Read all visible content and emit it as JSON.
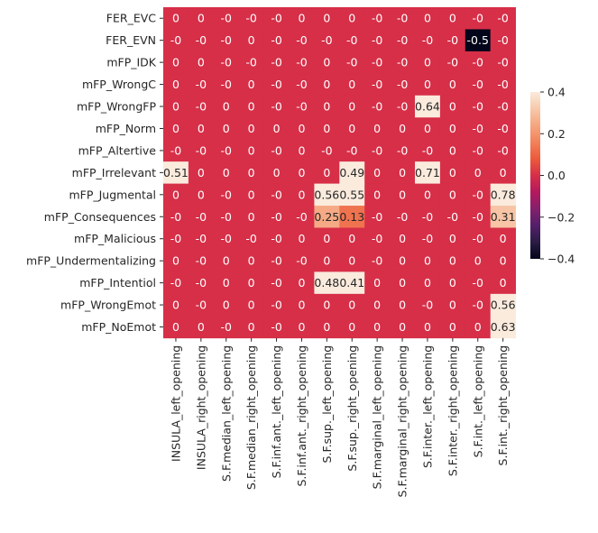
{
  "chart_data": {
    "type": "heatmap",
    "title": "",
    "xlabel": "",
    "ylabel": "",
    "rows": [
      "FER_EVC",
      "FER_EVN",
      "mFP_IDK",
      "mFP_WrongC",
      "mFP_WrongFP",
      "mFP_Norm",
      "mFP_Altertive",
      "mFP_Irrelevant",
      "mFP_Jugmental",
      "mFP_Consequences",
      "mFP_Malicious",
      "mFP_Undermentalizing",
      "mFP_Intentiol",
      "mFP_WrongEmot",
      "mFP_NoEmot"
    ],
    "columns": [
      "INSULA_left_opening",
      "INSULA_right_opening",
      "S.F.median_left_opening",
      "S.F.median_right_opening",
      "S.F.inf.ant._left_opening",
      "S.F.inf.ant._right_opening",
      "S.F.sup._left_opening",
      "S.F.sup._right_opening",
      "S.F.marginal_left_opening",
      "S.F.marginal_right_opening",
      "S.F.inter._left_opening",
      "S.F.inter._right_opening",
      "S.F.int._left_opening",
      "S.F.int._right_opening"
    ],
    "labels": [
      [
        "0",
        "0",
        "-0",
        "-0",
        "-0",
        "0",
        "0",
        "0",
        "-0",
        "-0",
        "0",
        "0",
        "-0",
        "-0"
      ],
      [
        "-0",
        "-0",
        "-0",
        "0",
        "-0",
        "-0",
        "-0",
        "-0",
        "-0",
        "-0",
        "-0",
        "-0",
        "-0.5",
        "-0"
      ],
      [
        "0",
        "0",
        "-0",
        "-0",
        "-0",
        "-0",
        "0",
        "-0",
        "-0",
        "-0",
        "0",
        "-0",
        "-0",
        "-0"
      ],
      [
        "0",
        "-0",
        "-0",
        "0",
        "-0",
        "-0",
        "0",
        "0",
        "-0",
        "-0",
        "0",
        "0",
        "-0",
        "-0"
      ],
      [
        "0",
        "-0",
        "0",
        "0",
        "-0",
        "-0",
        "0",
        "0",
        "-0",
        "-0",
        "0.64",
        "0",
        "-0",
        "-0"
      ],
      [
        "0",
        "0",
        "0",
        "0",
        "0",
        "0",
        "0",
        "0",
        "0",
        "0",
        "0",
        "0",
        "-0",
        "-0"
      ],
      [
        "-0",
        "-0",
        "-0",
        "0",
        "-0",
        "0",
        "-0",
        "-0",
        "-0",
        "-0",
        "-0",
        "0",
        "-0",
        "-0"
      ],
      [
        "0.51",
        "0",
        "0",
        "0",
        "0",
        "0",
        "0",
        "0.49",
        "0",
        "0",
        "0.71",
        "0",
        "0",
        "0"
      ],
      [
        "0",
        "0",
        "-0",
        "0",
        "-0",
        "0",
        "0.56",
        "0.55",
        "0",
        "0",
        "0",
        "0",
        "-0",
        "0.78"
      ],
      [
        "-0",
        "-0",
        "-0",
        "0",
        "-0",
        "-0",
        "0.25",
        "0.13",
        "-0",
        "-0",
        "-0",
        "-0",
        "-0",
        "0.31"
      ],
      [
        "-0",
        "-0",
        "-0",
        "-0",
        "-0",
        "0",
        "0",
        "0",
        "-0",
        "0",
        "-0",
        "0",
        "-0",
        "0"
      ],
      [
        "0",
        "-0",
        "0",
        "0",
        "-0",
        "-0",
        "0",
        "0",
        "-0",
        "0",
        "0",
        "0",
        "0",
        "0"
      ],
      [
        "-0",
        "-0",
        "0",
        "0",
        "-0",
        "0",
        "0.48",
        "0.41",
        "0",
        "0",
        "0",
        "0",
        "-0",
        "0"
      ],
      [
        "0",
        "-0",
        "0",
        "0",
        "-0",
        "0",
        "0",
        "0",
        "0",
        "0",
        "-0",
        "0",
        "-0",
        "0.56"
      ],
      [
        "0",
        "0",
        "-0",
        "0",
        "-0",
        "0",
        "0",
        "0",
        "0",
        "0",
        "0",
        "0",
        "0",
        "0.63"
      ]
    ],
    "color_range": [
      -0.4,
      0.4
    ],
    "colorbar_ticks": [
      "0.4",
      "0.2",
      "0.0",
      "−0.2",
      "−0.4"
    ],
    "colormap": "rocket",
    "grid": false,
    "legend": "colorbar-right"
  }
}
